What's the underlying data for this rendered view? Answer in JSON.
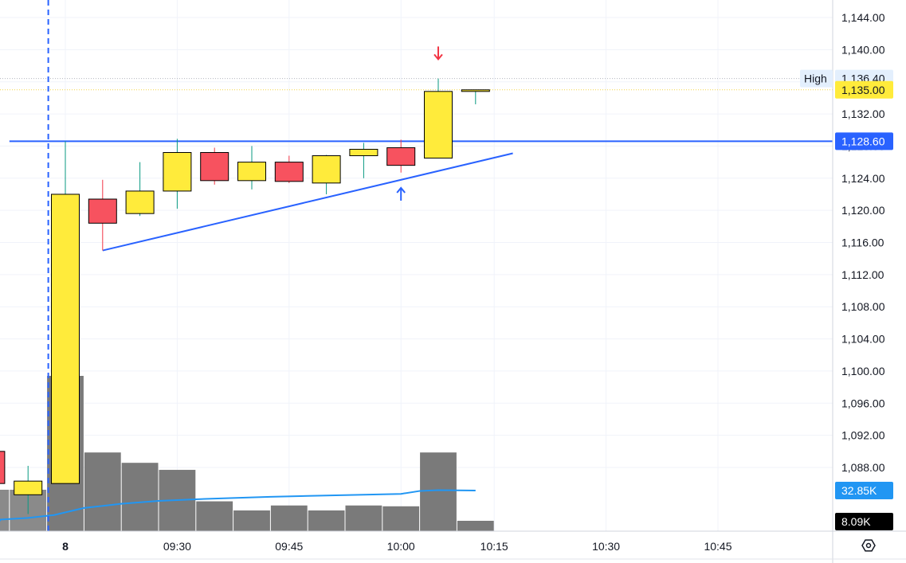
{
  "chart_data": {
    "type": "candlestick",
    "price_axis": {
      "ticks": [
        "1,144.00",
        "1,140.00",
        "1,136.00",
        "1,132.00",
        "1,128.00",
        "1,124.00",
        "1,120.00",
        "1,116.00",
        "1,112.00",
        "1,108.00",
        "1,104.00",
        "1,100.00",
        "1,096.00",
        "1,092.00",
        "1,088.00"
      ],
      "range": [
        1082,
        1146
      ]
    },
    "time_axis": {
      "ticks": [
        {
          "label": "8",
          "bold": true,
          "i": 0
        },
        {
          "label": "09:30",
          "i": 3
        },
        {
          "label": "09:45",
          "i": 6
        },
        {
          "label": "10:00",
          "i": 9
        },
        {
          "label": "10:15",
          "i": 11.5
        },
        {
          "label": "10:30",
          "i": 14.5
        },
        {
          "label": "10:45",
          "i": 17.5
        }
      ],
      "interval": "5m"
    },
    "candles": [
      {
        "i": -2,
        "o": 1090.0,
        "h": 1090.0,
        "l": 1086.0,
        "c": 1086.0
      },
      {
        "i": -1,
        "o": 1084.6,
        "h": 1088.2,
        "l": 1082.2,
        "c": 1086.3
      },
      {
        "i": 0,
        "o": 1086.0,
        "h": 1128.6,
        "l": 1086.0,
        "c": 1122.0
      },
      {
        "i": 1,
        "o": 1121.4,
        "h": 1123.8,
        "l": 1115.0,
        "c": 1118.4
      },
      {
        "i": 2,
        "o": 1119.6,
        "h": 1126.0,
        "l": 1119.3,
        "c": 1122.4
      },
      {
        "i": 3,
        "o": 1122.4,
        "h": 1128.9,
        "l": 1120.2,
        "c": 1127.2
      },
      {
        "i": 4,
        "o": 1127.2,
        "h": 1127.8,
        "l": 1123.2,
        "c": 1123.7
      },
      {
        "i": 5,
        "o": 1123.7,
        "h": 1128.0,
        "l": 1122.6,
        "c": 1126.0
      },
      {
        "i": 6,
        "o": 1126.0,
        "h": 1126.8,
        "l": 1123.4,
        "c": 1123.6
      },
      {
        "i": 7,
        "o": 1123.4,
        "h": 1126.9,
        "l": 1122.0,
        "c": 1126.8
      },
      {
        "i": 8,
        "o": 1126.8,
        "h": 1128.4,
        "l": 1124.0,
        "c": 1127.6
      },
      {
        "i": 9,
        "o": 1127.8,
        "h": 1128.8,
        "l": 1124.7,
        "c": 1125.6
      },
      {
        "i": 10,
        "o": 1126.5,
        "h": 1136.4,
        "l": 1126.5,
        "c": 1134.8
      },
      {
        "i": 11,
        "o": 1134.8,
        "h": 1135.0,
        "l": 1133.2,
        "c": 1135.0
      }
    ],
    "volume": [
      {
        "i": -2,
        "v": 10.0,
        "color": "red"
      },
      {
        "i": -1,
        "v": 10.0,
        "color": "red"
      },
      {
        "i": 0,
        "v": 37.5
      },
      {
        "i": 1,
        "v": 19.0
      },
      {
        "i": 2,
        "v": 16.5
      },
      {
        "i": 3,
        "v": 14.8
      },
      {
        "i": 4,
        "v": 7.2
      },
      {
        "i": 5,
        "v": 5.0
      },
      {
        "i": 6,
        "v": 6.2
      },
      {
        "i": 7,
        "v": 5.0
      },
      {
        "i": 8,
        "v": 6.2
      },
      {
        "i": 9,
        "v": 6.0
      },
      {
        "i": 10,
        "v": 19.0
      },
      {
        "i": 11,
        "v": 2.5
      }
    ],
    "volume_ma": [
      {
        "i": -2.8,
        "v": 2.4
      },
      {
        "i": -2,
        "v": 2.8
      },
      {
        "i": -1,
        "v": 3.2
      },
      {
        "i": -0.3,
        "v": 3.9
      },
      {
        "i": 0.5,
        "v": 5.6
      },
      {
        "i": 1.5,
        "v": 6.6
      },
      {
        "i": 2.5,
        "v": 7.3
      },
      {
        "i": 3.5,
        "v": 7.7
      },
      {
        "i": 4.5,
        "v": 8.0
      },
      {
        "i": 5.5,
        "v": 8.3
      },
      {
        "i": 6.5,
        "v": 8.5
      },
      {
        "i": 7.5,
        "v": 8.7
      },
      {
        "i": 8.5,
        "v": 8.9
      },
      {
        "i": 9,
        "v": 9.0
      },
      {
        "i": 9.5,
        "v": 9.7
      },
      {
        "i": 10,
        "v": 9.9
      },
      {
        "i": 11,
        "v": 9.8
      }
    ],
    "volume_ma_label": "32.85K",
    "volume_label": "8.09K",
    "horizontal_line": {
      "price": 1128.6,
      "label": "1,128.60",
      "from_i": -1.5
    },
    "trendline": {
      "from": {
        "i": 1,
        "p": 1115.0
      },
      "to": {
        "i": 12,
        "p": 1127.1
      }
    },
    "high_line": {
      "price": 1136.4,
      "text": "High",
      "label": "1,136.40"
    },
    "last_price": {
      "price": 1135.0,
      "label": "1,135.00"
    },
    "session_divider_i": -0.5,
    "markers": [
      {
        "type": "arrow-down",
        "i": 10,
        "price": 1139.6,
        "color": "#f23645"
      },
      {
        "type": "arrow-up",
        "i": 9,
        "price": 1122.0,
        "color": "#2962ff"
      }
    ],
    "colors": {
      "up": "#ffeb3b",
      "down": "#f7525f",
      "wick_up": "#089981",
      "wick_down": "#f23645",
      "volume": "#7a7a7a",
      "volume_ma": "#2196f3",
      "hline": "#2962ff",
      "grid": "#f0f3fa"
    },
    "settings_icon": "settings-icon"
  }
}
